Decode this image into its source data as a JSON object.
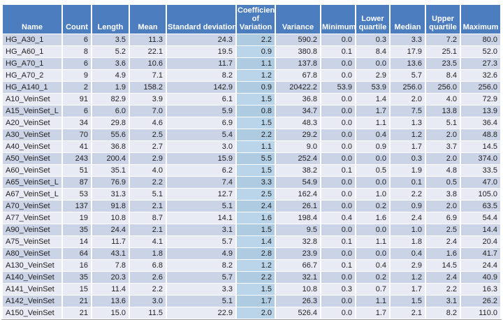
{
  "table": {
    "columns": [
      "Name",
      "Count",
      "Length",
      "Mean",
      "Standard deviation",
      "Coefficient of Variation",
      "Variance",
      "Minimum",
      "Lower quartile",
      "Median",
      "Upper quartile",
      "Maximum"
    ],
    "rows": [
      [
        "HG_A30_1",
        "6",
        "3.5",
        "11.3",
        "24.3",
        "2.2",
        "590.2",
        "0.0",
        "0.3",
        "3.3",
        "7.2",
        "80.0"
      ],
      [
        "HG_A60_1",
        "8",
        "5.2",
        "22.1",
        "19.5",
        "0.9",
        "380.8",
        "0.1",
        "8.4",
        "17.9",
        "25.1",
        "52.0"
      ],
      [
        "HG_A70_1",
        "6",
        "3.6",
        "10.6",
        "11.7",
        "1.1",
        "137.8",
        "0.0",
        "0.0",
        "13.6",
        "23.5",
        "27.3"
      ],
      [
        "HG_A70_2",
        "9",
        "4.9",
        "7.1",
        "8.2",
        "1.2",
        "67.8",
        "0.0",
        "2.9",
        "5.7",
        "8.4",
        "32.6"
      ],
      [
        "HG_A140_1",
        "2",
        "1.9",
        "158.2",
        "142.9",
        "0.9",
        "20422.2",
        "53.9",
        "53.9",
        "256.0",
        "256.0",
        "256.0"
      ],
      [
        "A10_VeinSet",
        "91",
        "82.9",
        "3.9",
        "6.1",
        "1.5",
        "36.8",
        "0.0",
        "1.4",
        "2.0",
        "4.0",
        "72.9"
      ],
      [
        "A15_VeinSet_L",
        "6",
        "6.0",
        "7.0",
        "5.9",
        "0.8",
        "34.7",
        "0.0",
        "1.7",
        "7.5",
        "13.8",
        "13.9"
      ],
      [
        "A20_VeinSet",
        "34",
        "29.8",
        "4.6",
        "6.9",
        "1.5",
        "48.3",
        "0.0",
        "1.1",
        "1.3",
        "5.1",
        "36.4"
      ],
      [
        "A30_VeinSet",
        "70",
        "55.6",
        "2.5",
        "5.4",
        "2.2",
        "29.2",
        "0.0",
        "0.4",
        "1.2",
        "2.0",
        "48.8"
      ],
      [
        "A40_VeinSet",
        "41",
        "36.8",
        "2.7",
        "3.0",
        "1.1",
        "9.0",
        "0.0",
        "0.9",
        "1.7",
        "3.7",
        "14.5"
      ],
      [
        "A50_VeinSet",
        "243",
        "200.4",
        "2.9",
        "15.9",
        "5.5",
        "252.4",
        "0.0",
        "0.0",
        "0.3",
        "2.0",
        "374.0"
      ],
      [
        "A60_VeinSet",
        "51",
        "35.1",
        "4.0",
        "6.2",
        "1.5",
        "38.2",
        "0.1",
        "0.5",
        "1.9",
        "4.8",
        "33.5"
      ],
      [
        "A65_VeinSet_L",
        "87",
        "76.9",
        "2.2",
        "7.4",
        "3.3",
        "54.9",
        "0.0",
        "0.0",
        "0.1",
        "0.5",
        "47.0"
      ],
      [
        "A67_VeinSet_L",
        "53",
        "31.3",
        "5.1",
        "12.7",
        "2.5",
        "162.4",
        "0.0",
        "1.0",
        "2.2",
        "3.8",
        "105.0"
      ],
      [
        "A70_VeinSet",
        "137",
        "91.8",
        "2.1",
        "5.1",
        "2.4",
        "26.1",
        "0.0",
        "0.2",
        "0.9",
        "2.0",
        "63.5"
      ],
      [
        "A77_VeinSet",
        "19",
        "10.8",
        "8.7",
        "14.1",
        "1.6",
        "198.4",
        "0.4",
        "1.6",
        "2.4",
        "6.9",
        "54.4"
      ],
      [
        "A90_VeinSet",
        "35",
        "24.4",
        "2.1",
        "3.1",
        "1.5",
        "9.5",
        "0.0",
        "0.0",
        "1.0",
        "2.5",
        "14.4"
      ],
      [
        "A75_VeinSet",
        "14",
        "11.7",
        "4.1",
        "5.7",
        "1.4",
        "32.8",
        "0.1",
        "1.1",
        "1.8",
        "2.4",
        "20.4"
      ],
      [
        "A80_VeinSet",
        "64",
        "43.1",
        "1.8",
        "4.9",
        "2.8",
        "23.9",
        "0.0",
        "0.0",
        "0.4",
        "1.6",
        "41.7"
      ],
      [
        "A130_VeinSet",
        "16",
        "7.8",
        "6.8",
        "8.2",
        "1.2",
        "66.7",
        "0.1",
        "0.4",
        "2.9",
        "14.5",
        "24.4"
      ],
      [
        "A140_VeinSet",
        "35",
        "20.3",
        "2.6",
        "5.7",
        "2.2",
        "32.1",
        "0.0",
        "0.2",
        "1.2",
        "2.4",
        "40.9"
      ],
      [
        "A141_VeinSet",
        "15",
        "11.4",
        "2.2",
        "3.3",
        "1.5",
        "10.8",
        "0.3",
        "0.7",
        "1.7",
        "2.2",
        "16.3"
      ],
      [
        "A142_VeinSet",
        "21",
        "13.6",
        "3.0",
        "5.1",
        "1.7",
        "26.3",
        "0.0",
        "1.1",
        "1.5",
        "3.1",
        "26.2"
      ],
      [
        "A150_VeinSet",
        "21",
        "15.0",
        "11.5",
        "22.9",
        "2.0",
        "526.4",
        "0.0",
        "1.7",
        "2.1",
        "8.2",
        "110.0"
      ]
    ],
    "colors": {
      "header_bg": "#4C7DBF",
      "header_text": "#FFFFFF",
      "row_odd": "#CBD3E6",
      "row_even": "#E9EBF4",
      "cov_odd": "#AECBE1",
      "cov_even": "#BAD4E9",
      "body_text": "#212121",
      "border_bottom": "#9C9C9C"
    }
  }
}
